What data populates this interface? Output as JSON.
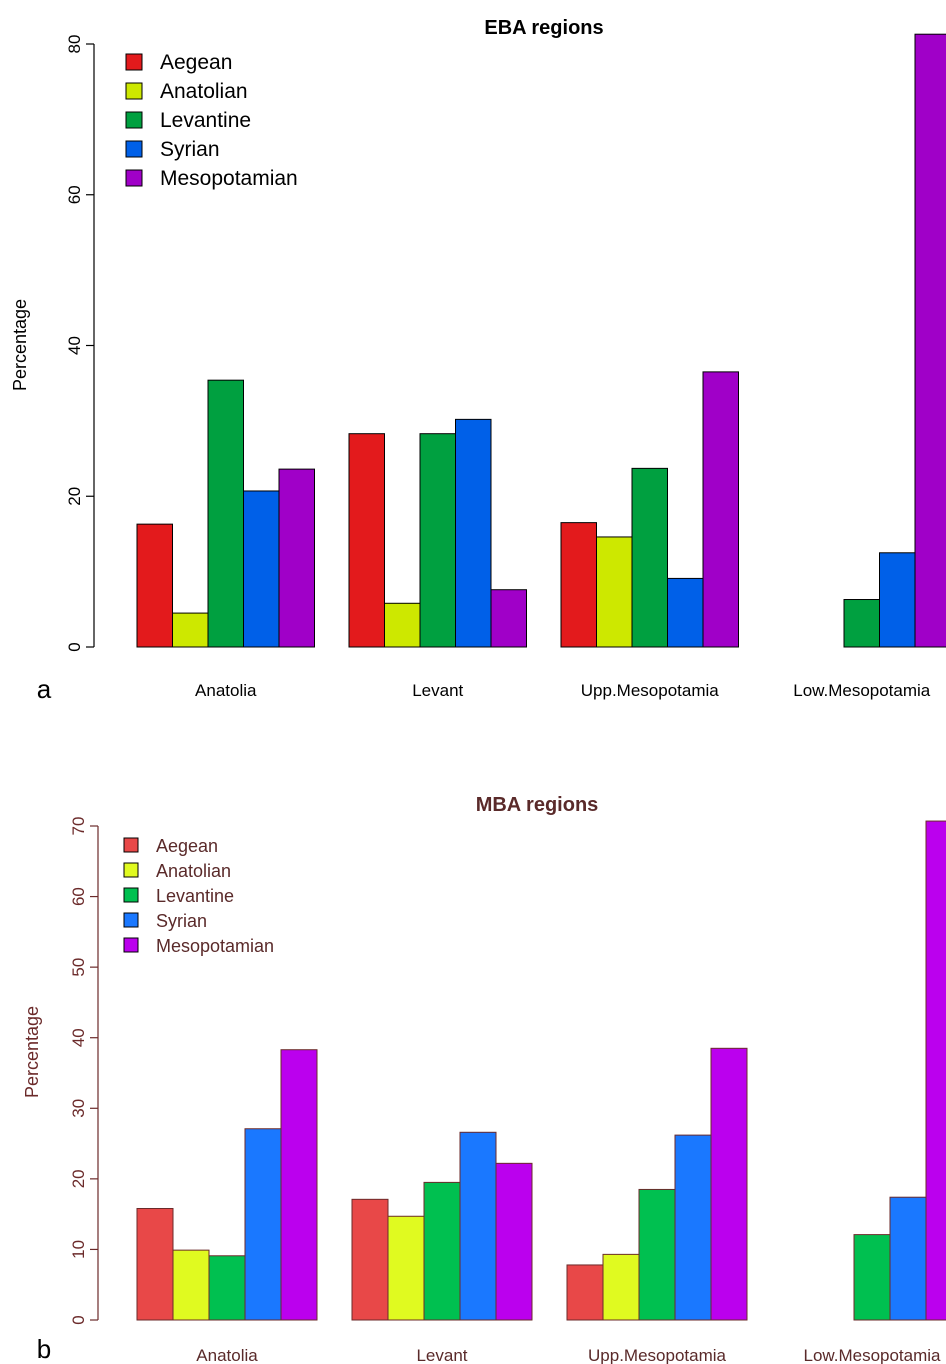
{
  "panel_labels": [
    "a",
    "b"
  ],
  "chart_data": [
    {
      "type": "bar",
      "title": "EBA regions",
      "xlabel": "",
      "ylabel": "Percentage",
      "ylim": [
        0,
        80
      ],
      "yticks": [
        0,
        20,
        40,
        60,
        80
      ],
      "categories": [
        "Anatolia",
        "Levant",
        "Upp.Mesopotamia",
        "Low.Mesopotamia"
      ],
      "series": [
        {
          "name": "Aegean",
          "color": "#e31a1c",
          "values": [
            16.3,
            28.3,
            16.5,
            0
          ]
        },
        {
          "name": "Anatolian",
          "color": "#cde800",
          "values": [
            4.5,
            5.8,
            14.6,
            0
          ]
        },
        {
          "name": "Levantine",
          "color": "#00a040",
          "values": [
            35.4,
            28.3,
            23.7,
            6.3
          ]
        },
        {
          "name": "Syrian",
          "color": "#0060e8",
          "values": [
            20.7,
            30.2,
            9.1,
            12.5
          ]
        },
        {
          "name": "Mesopotamian",
          "color": "#a000c8",
          "values": [
            23.6,
            7.6,
            36.5,
            81.3
          ]
        }
      ],
      "legend_position": "top-left",
      "grid": false
    },
    {
      "type": "bar",
      "title": "MBA regions",
      "xlabel": "",
      "ylabel": "Percentage",
      "ylim": [
        0,
        70
      ],
      "yticks": [
        0,
        10,
        20,
        30,
        40,
        50,
        60,
        70
      ],
      "categories": [
        "Anatolia",
        "Levant",
        "Upp.Mesopotamia",
        "Low.Mesopotamia"
      ],
      "series": [
        {
          "name": "Aegean",
          "color": "#e84848",
          "values": [
            15.8,
            17.1,
            7.8,
            0
          ]
        },
        {
          "name": "Anatolian",
          "color": "#e0fa20",
          "values": [
            9.9,
            14.7,
            9.3,
            0
          ]
        },
        {
          "name": "Levantine",
          "color": "#00c050",
          "values": [
            9.1,
            19.5,
            18.5,
            12.1
          ]
        },
        {
          "name": "Syrian",
          "color": "#1a78ff",
          "values": [
            27.1,
            26.6,
            26.2,
            17.4
          ]
        },
        {
          "name": "Mesopotamian",
          "color": "#bb00ee",
          "values": [
            38.3,
            22.2,
            38.5,
            70.7
          ]
        }
      ],
      "legend_position": "top-left",
      "grid": false
    }
  ]
}
